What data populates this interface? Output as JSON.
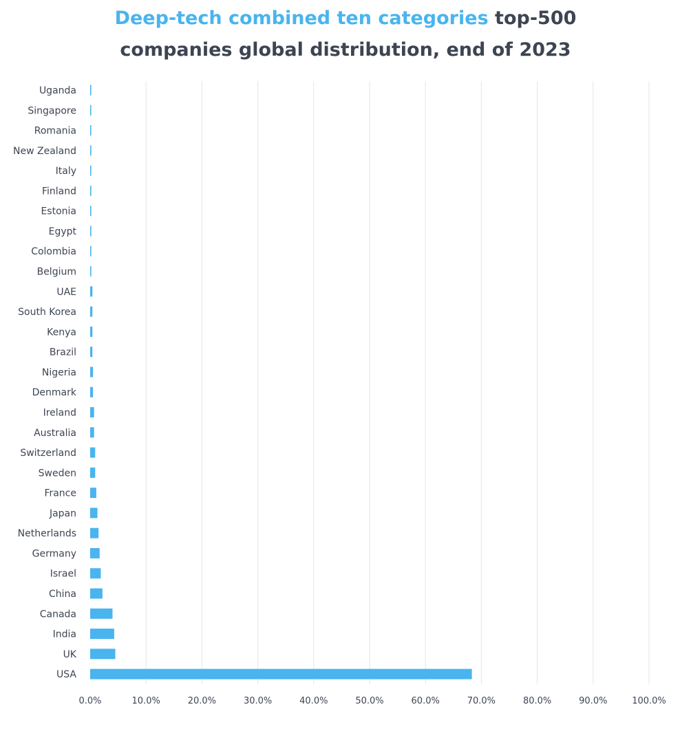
{
  "chart_data": {
    "type": "bar",
    "orientation": "horizontal",
    "title_highlight": "Deep-tech combined ten categories",
    "title_rest_line1": "top-500",
    "title_line2": "companies global distribution, end of 2023",
    "categories": [
      "Uganda",
      "Singapore",
      "Romania",
      "New Zealand",
      "Italy",
      "Finland",
      "Estonia",
      "Egypt",
      "Colombia",
      "Belgium",
      "UAE",
      "South Korea",
      "Kenya",
      "Brazil",
      "Nigeria",
      "Denmark",
      "Ireland",
      "Australia",
      "Switzerland",
      "Sweden",
      "France",
      "Japan",
      "Netherlands",
      "Germany",
      "Israel",
      "China",
      "Canada",
      "India",
      "UK",
      "USA"
    ],
    "values": [
      0.2,
      0.2,
      0.2,
      0.2,
      0.2,
      0.2,
      0.2,
      0.2,
      0.2,
      0.2,
      0.4,
      0.4,
      0.4,
      0.4,
      0.5,
      0.5,
      0.7,
      0.7,
      0.9,
      0.9,
      1.1,
      1.3,
      1.5,
      1.7,
      1.9,
      2.2,
      4.0,
      4.3,
      4.5,
      68.3
    ],
    "xlim": [
      0,
      100
    ],
    "xticks": [
      "0.0%",
      "10.0%",
      "20.0%",
      "30.0%",
      "40.0%",
      "50.0%",
      "60.0%",
      "70.0%",
      "80.0%",
      "90.0%",
      "100.0%"
    ],
    "grid": "vertical",
    "bar_color": "#4ab4ee",
    "highlight_color": "#4ab4ee",
    "text_color": "#3d4452"
  }
}
